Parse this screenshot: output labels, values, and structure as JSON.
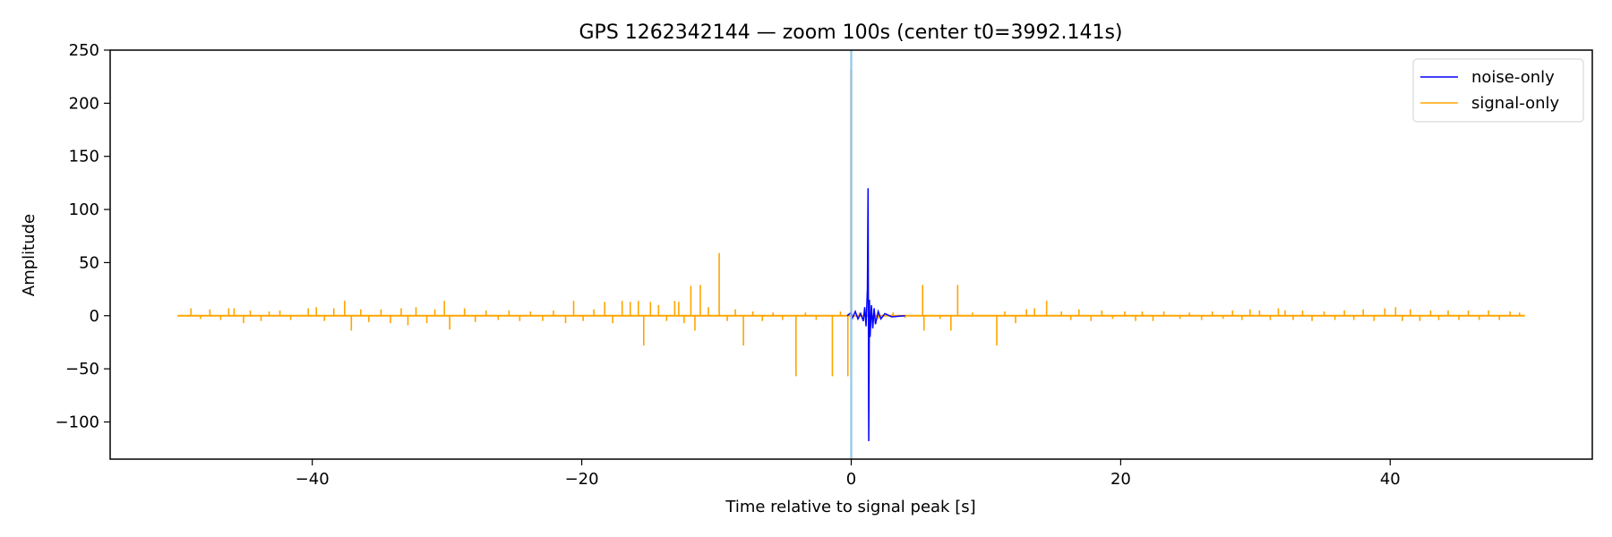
{
  "chart_data": {
    "type": "line",
    "title": "GPS 1262342144 — zoom 100s (center t0=3992.141s)",
    "xlabel": "Time relative to signal peak [s]",
    "ylabel": "Amplitude",
    "xlim": [
      -55,
      55
    ],
    "ylim": [
      -135,
      250
    ],
    "xticks": [
      -40,
      -20,
      0,
      20,
      40
    ],
    "xtick_labels": [
      "−40",
      "−20",
      "0",
      "20",
      "40"
    ],
    "yticks": [
      -100,
      -50,
      0,
      50,
      100,
      150,
      200,
      250
    ],
    "ytick_labels": [
      "−100",
      "−50",
      "0",
      "50",
      "100",
      "150",
      "200",
      "250"
    ],
    "grid": false,
    "legend_position": "top-right",
    "vline": {
      "x": 0,
      "color": "#8ec3e8"
    },
    "series": [
      {
        "name": "noise-only",
        "color": "#0000ff",
        "points": [
          [
            -0.3,
            0
          ],
          [
            0.0,
            3
          ],
          [
            0.1,
            -2
          ],
          [
            0.3,
            4
          ],
          [
            0.5,
            -3
          ],
          [
            0.7,
            2
          ],
          [
            0.9,
            -5
          ],
          [
            1.0,
            8
          ],
          [
            1.1,
            -10
          ],
          [
            1.2,
            25
          ],
          [
            1.25,
            120
          ],
          [
            1.3,
            -118
          ],
          [
            1.35,
            15
          ],
          [
            1.4,
            -20
          ],
          [
            1.5,
            10
          ],
          [
            1.6,
            -12
          ],
          [
            1.7,
            7
          ],
          [
            1.8,
            -8
          ],
          [
            2.0,
            4
          ],
          [
            2.2,
            -3
          ],
          [
            2.5,
            2
          ],
          [
            3.0,
            -1
          ],
          [
            4.0,
            0
          ]
        ]
      },
      {
        "name": "signal-only",
        "color": "#ffa500",
        "baseline": [
          -50,
          50
        ],
        "spikes": [
          [
            -49.0,
            7
          ],
          [
            -48.3,
            -3
          ],
          [
            -47.6,
            6
          ],
          [
            -46.8,
            -4
          ],
          [
            -46.2,
            7
          ],
          [
            -45.8,
            7
          ],
          [
            -45.1,
            -7
          ],
          [
            -44.6,
            5
          ],
          [
            -43.8,
            -5
          ],
          [
            -43.2,
            4
          ],
          [
            -42.4,
            5
          ],
          [
            -41.6,
            -4
          ],
          [
            -40.3,
            7
          ],
          [
            -39.7,
            8
          ],
          [
            -39.1,
            -5
          ],
          [
            -38.4,
            7
          ],
          [
            -37.6,
            14
          ],
          [
            -37.1,
            -14
          ],
          [
            -36.4,
            6
          ],
          [
            -35.8,
            -6
          ],
          [
            -34.9,
            6
          ],
          [
            -34.2,
            -7
          ],
          [
            -33.4,
            7
          ],
          [
            -32.9,
            -9
          ],
          [
            -32.3,
            8
          ],
          [
            -31.5,
            -7
          ],
          [
            -30.9,
            6
          ],
          [
            -30.2,
            14
          ],
          [
            -29.8,
            -13
          ],
          [
            -28.7,
            7
          ],
          [
            -27.9,
            -6
          ],
          [
            -27.1,
            5
          ],
          [
            -26.2,
            -4
          ],
          [
            -25.4,
            5
          ],
          [
            -24.6,
            -5
          ],
          [
            -23.8,
            4
          ],
          [
            -22.9,
            -5
          ],
          [
            -22.1,
            5
          ],
          [
            -21.2,
            -7
          ],
          [
            -20.6,
            14
          ],
          [
            -19.9,
            -5
          ],
          [
            -19.1,
            6
          ],
          [
            -18.3,
            13
          ],
          [
            -17.7,
            -7
          ],
          [
            -17.0,
            14
          ],
          [
            -16.4,
            13
          ],
          [
            -15.8,
            14
          ],
          [
            -15.4,
            -28
          ],
          [
            -14.9,
            13
          ],
          [
            -14.3,
            10
          ],
          [
            -13.7,
            -5
          ],
          [
            -13.1,
            14
          ],
          [
            -12.8,
            13
          ],
          [
            -12.4,
            -7
          ],
          [
            -11.9,
            28
          ],
          [
            -11.6,
            -14
          ],
          [
            -11.2,
            29
          ],
          [
            -10.6,
            8
          ],
          [
            -9.8,
            59
          ],
          [
            -9.2,
            -5
          ],
          [
            -8.6,
            6
          ],
          [
            -8.0,
            -28
          ],
          [
            -7.3,
            4
          ],
          [
            -6.6,
            -5
          ],
          [
            -5.8,
            3
          ],
          [
            -5.1,
            -4
          ],
          [
            -4.1,
            -57
          ],
          [
            -3.4,
            3
          ],
          [
            -2.6,
            -4
          ],
          [
            -1.4,
            -57
          ],
          [
            -0.8,
            4
          ],
          [
            -0.25,
            -57
          ],
          [
            0.0,
            232
          ],
          [
            0.6,
            3
          ],
          [
            2.0,
            -3
          ],
          [
            3.1,
            3
          ],
          [
            4.0,
            -2
          ],
          [
            5.3,
            29
          ],
          [
            5.4,
            -14
          ],
          [
            6.6,
            -3
          ],
          [
            7.9,
            29
          ],
          [
            7.4,
            -14
          ],
          [
            9.0,
            3
          ],
          [
            10.8,
            -28
          ],
          [
            11.4,
            4
          ],
          [
            12.2,
            -7
          ],
          [
            13.0,
            6
          ],
          [
            13.6,
            7
          ],
          [
            14.5,
            14
          ],
          [
            15.6,
            4
          ],
          [
            16.3,
            -4
          ],
          [
            16.9,
            6
          ],
          [
            17.8,
            -5
          ],
          [
            18.6,
            5
          ],
          [
            19.4,
            -3
          ],
          [
            20.3,
            4
          ],
          [
            21.1,
            -5
          ],
          [
            21.6,
            4
          ],
          [
            22.4,
            -5
          ],
          [
            23.2,
            4
          ],
          [
            24.4,
            -3
          ],
          [
            25.1,
            3
          ],
          [
            26.0,
            -4
          ],
          [
            26.8,
            4
          ],
          [
            27.6,
            -3
          ],
          [
            28.3,
            5
          ],
          [
            29.0,
            -4
          ],
          [
            29.6,
            6
          ],
          [
            30.3,
            5
          ],
          [
            31.1,
            -4
          ],
          [
            31.7,
            7
          ],
          [
            32.2,
            5
          ],
          [
            32.8,
            -4
          ],
          [
            33.5,
            5
          ],
          [
            34.2,
            -5
          ],
          [
            35.1,
            4
          ],
          [
            35.9,
            -4
          ],
          [
            36.6,
            5
          ],
          [
            37.3,
            -4
          ],
          [
            38.0,
            6
          ],
          [
            38.8,
            -5
          ],
          [
            39.6,
            7
          ],
          [
            40.4,
            8
          ],
          [
            40.9,
            -5
          ],
          [
            41.5,
            6
          ],
          [
            42.2,
            -5
          ],
          [
            43.0,
            5
          ],
          [
            43.6,
            -4
          ],
          [
            44.3,
            5
          ],
          [
            45.1,
            -4
          ],
          [
            45.8,
            5
          ],
          [
            46.6,
            -4
          ],
          [
            47.3,
            5
          ],
          [
            48.1,
            -4
          ],
          [
            48.9,
            4
          ],
          [
            49.6,
            3
          ]
        ]
      }
    ]
  }
}
